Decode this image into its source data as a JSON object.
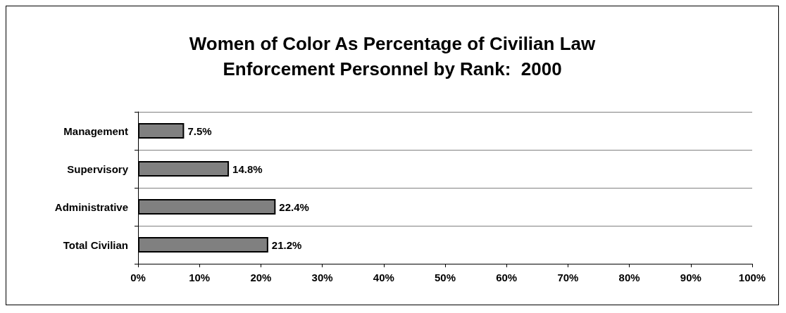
{
  "chart_data": {
    "type": "bar",
    "orientation": "horizontal",
    "title": "Women of Color As Percentage of Civilian Law\nEnforcement Personnel by Rank:  2000",
    "categories": [
      "Management",
      "Supervisory",
      "Administrative",
      "Total Civilian"
    ],
    "values": [
      7.5,
      14.8,
      22.4,
      21.2
    ],
    "value_labels": [
      "7.5%",
      "14.8%",
      "22.4%",
      "21.2%"
    ],
    "color": "#808080",
    "xlim": [
      0,
      100
    ],
    "xticks": [
      {
        "value": 0,
        "label": "0%"
      },
      {
        "value": 10,
        "label": "10%"
      },
      {
        "value": 20,
        "label": "20%"
      },
      {
        "value": 30,
        "label": "30%"
      },
      {
        "value": 40,
        "label": "40%"
      },
      {
        "value": 50,
        "label": "50%"
      },
      {
        "value": 60,
        "label": "60%"
      },
      {
        "value": 70,
        "label": "70%"
      },
      {
        "value": 80,
        "label": "80%"
      },
      {
        "value": 90,
        "label": "90%"
      },
      {
        "value": 100,
        "label": "100%"
      }
    ],
    "grid": "y"
  }
}
